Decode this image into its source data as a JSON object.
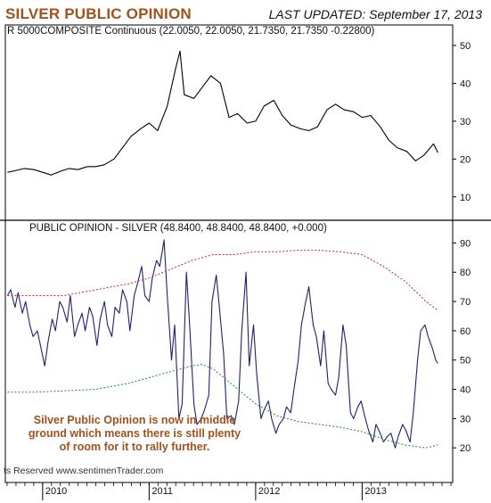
{
  "header": {
    "title": "SILVER PUBLIC OPINION",
    "updated": "LAST UPDATED:  September 17, 2013"
  },
  "annotation": {
    "lines": [
      "Silver Public Opinion is now in middle",
      "ground which means there is still plenty",
      "of room for it to rally further."
    ],
    "rights": "ts Reserved  www.sentimenTrader.com"
  },
  "colors": {
    "price_line": "#000000",
    "opinion_line": "#20206e",
    "upper_band": "#c0282a",
    "lower_band": "#1f8a2a",
    "title": "#a0521c"
  },
  "chart_data": [
    {
      "type": "line",
      "title": "R 5000COMPOSITE Continuous (22.0050, 22.0050, 21.7350, 21.7350 -0.22800)",
      "ylim": [
        5,
        54
      ],
      "yticks": [
        10,
        20,
        30,
        40,
        50
      ],
      "xlim": [
        2009.65,
        2013.85
      ],
      "series": [
        {
          "x": [
            2009.67,
            2009.75,
            2009.83,
            2009.92,
            2010.0,
            2010.08,
            2010.17,
            2010.25,
            2010.33,
            2010.42,
            2010.5,
            2010.58,
            2010.67,
            2010.75,
            2010.83,
            2010.92,
            2011.0,
            2011.08,
            2011.17,
            2011.25,
            2011.29,
            2011.33,
            2011.42,
            2011.5,
            2011.58,
            2011.67,
            2011.75,
            2011.83,
            2011.92,
            2012.0,
            2012.08,
            2012.17,
            2012.25,
            2012.33,
            2012.42,
            2012.5,
            2012.58,
            2012.67,
            2012.75,
            2012.83,
            2012.92,
            2013.0,
            2013.08,
            2013.17,
            2013.25,
            2013.33,
            2013.42,
            2013.5,
            2013.58,
            2013.67,
            2013.71
          ],
          "values": [
            16.5,
            17,
            17.5,
            17.2,
            16.5,
            15.8,
            16.8,
            17.5,
            17.2,
            18,
            18,
            18.5,
            20,
            23,
            26,
            28,
            29.5,
            27.5,
            34,
            44,
            48.5,
            37,
            36,
            39,
            42,
            40,
            31,
            32,
            29.5,
            30,
            34,
            35.5,
            31.5,
            29,
            28,
            27.5,
            28.5,
            33,
            34.5,
            33,
            32.5,
            31,
            31.5,
            28.5,
            25,
            23,
            22,
            19.5,
            21,
            24,
            21.7
          ]
        }
      ]
    },
    {
      "type": "line",
      "title": "PUBLIC OPINION - SILVER (48.8400, 48.8400, 48.8400, +0.000)",
      "ylim": [
        10,
        95
      ],
      "yticks": [
        20,
        30,
        40,
        50,
        60,
        70,
        80,
        90
      ],
      "xlim": [
        2009.65,
        2013.85
      ],
      "xticks": [
        "2010",
        "2011",
        "2012",
        "2013"
      ],
      "series": [
        {
          "name": "Public Opinion",
          "x": [
            2009.67,
            2009.7,
            2009.74,
            2009.77,
            2009.81,
            2009.84,
            2009.88,
            2009.91,
            2009.95,
            2009.98,
            2010.02,
            2010.05,
            2010.09,
            2010.12,
            2010.16,
            2010.19,
            2010.23,
            2010.26,
            2010.3,
            2010.33,
            2010.37,
            2010.4,
            2010.44,
            2010.47,
            2010.51,
            2010.54,
            2010.58,
            2010.61,
            2010.65,
            2010.68,
            2010.72,
            2010.75,
            2010.79,
            2010.82,
            2010.86,
            2010.89,
            2010.93,
            2010.96,
            2011.0,
            2011.03,
            2011.07,
            2011.1,
            2011.14,
            2011.17,
            2011.21,
            2011.24,
            2011.28,
            2011.31,
            2011.35,
            2011.38,
            2011.42,
            2011.45,
            2011.49,
            2011.52,
            2011.56,
            2011.59,
            2011.63,
            2011.66,
            2011.7,
            2011.73,
            2011.77,
            2011.8,
            2011.84,
            2011.87,
            2011.91,
            2011.94,
            2011.98,
            2012.01,
            2012.05,
            2012.08,
            2012.12,
            2012.15,
            2012.19,
            2012.22,
            2012.26,
            2012.29,
            2012.33,
            2012.36,
            2012.4,
            2012.43,
            2012.47,
            2012.5,
            2012.54,
            2012.57,
            2012.61,
            2012.64,
            2012.68,
            2012.71,
            2012.75,
            2012.78,
            2012.82,
            2012.85,
            2012.89,
            2012.92,
            2012.96,
            2012.99,
            2013.03,
            2013.06,
            2013.1,
            2013.13,
            2013.17,
            2013.2,
            2013.24,
            2013.27,
            2013.31,
            2013.34,
            2013.38,
            2013.41,
            2013.45,
            2013.48,
            2013.52,
            2013.55,
            2013.59,
            2013.62,
            2013.66,
            2013.69,
            2013.71
          ],
          "values": [
            72,
            74,
            68,
            73,
            66,
            70,
            62,
            58,
            60,
            55,
            48,
            56,
            64,
            60,
            70,
            68,
            63,
            72,
            58,
            62,
            66,
            60,
            68,
            65,
            55,
            64,
            70,
            62,
            58,
            68,
            66,
            74,
            70,
            60,
            72,
            76,
            82,
            72,
            70,
            78,
            84,
            82,
            91,
            72,
            50,
            62,
            30,
            35,
            80,
            62,
            35,
            28,
            30,
            33,
            38,
            70,
            79,
            68,
            52,
            30,
            31,
            28,
            36,
            60,
            80,
            48,
            62,
            45,
            30,
            33,
            36,
            30,
            25,
            28,
            30,
            34,
            32,
            40,
            50,
            62,
            70,
            75,
            62,
            58,
            48,
            60,
            42,
            40,
            38,
            44,
            62,
            55,
            32,
            30,
            34,
            36,
            30,
            26,
            22,
            28,
            25,
            22,
            24,
            25,
            20,
            24,
            28,
            26,
            22,
            32,
            50,
            60,
            62,
            58,
            54,
            50,
            48.84
          ]
        },
        {
          "name": "Upper band",
          "x": [
            2009.67,
            2009.9,
            2010.2,
            2010.5,
            2010.8,
            2011.0,
            2011.2,
            2011.4,
            2011.6,
            2011.8,
            2012.0,
            2012.2,
            2012.4,
            2012.6,
            2012.8,
            2013.0,
            2013.2,
            2013.4,
            2013.6,
            2013.71
          ],
          "values": [
            72,
            72,
            72,
            74,
            76,
            78,
            81,
            84,
            86,
            86,
            87,
            87,
            87.5,
            87.5,
            87,
            86,
            82,
            77,
            70,
            67
          ]
        },
        {
          "name": "Lower band",
          "x": [
            2009.67,
            2009.9,
            2010.2,
            2010.5,
            2010.8,
            2011.0,
            2011.2,
            2011.4,
            2011.5,
            2011.6,
            2011.8,
            2012.0,
            2012.2,
            2012.4,
            2012.6,
            2012.8,
            2013.0,
            2013.2,
            2013.4,
            2013.6,
            2013.71
          ],
          "values": [
            39,
            39,
            39.5,
            40,
            42,
            44,
            46,
            48,
            48.5,
            47,
            41,
            35,
            31,
            29,
            28,
            27,
            25.5,
            23,
            21,
            20,
            21
          ]
        }
      ]
    }
  ]
}
